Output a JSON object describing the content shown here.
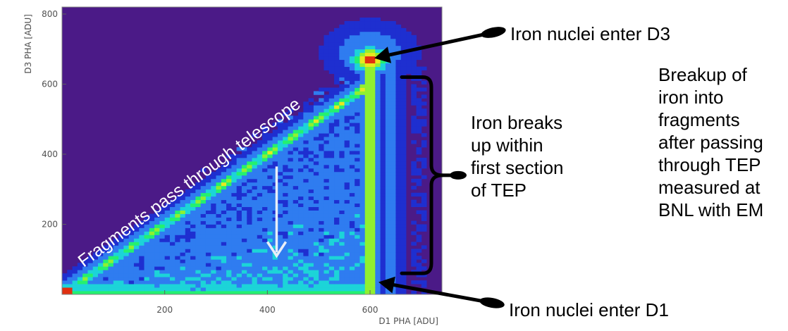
{
  "chart_data": {
    "type": "heatmap",
    "xlabel": "D1  PHA  [ADU]",
    "ylabel": "D3  PHA  [ADU]",
    "xlim": [
      0,
      740
    ],
    "ylim": [
      0,
      820
    ],
    "xticks": [
      200,
      400,
      600
    ],
    "yticks": [
      200,
      400,
      600,
      800
    ],
    "background_color": "#4b1a87",
    "colorscale": [
      "#4b1a87",
      "#1e2fd0",
      "#2f7cf0",
      "#1cd4d8",
      "#24f070",
      "#90f030",
      "#e8e820",
      "#e03010"
    ],
    "features": [
      {
        "name": "diagonal band",
        "x_range": [
          0,
          600
        ],
        "y_equals_x": true,
        "peak_counts": "high"
      },
      {
        "name": "vertical band",
        "x": 600,
        "y_range": [
          0,
          700
        ],
        "peak_counts": "high"
      },
      {
        "name": "iron peak",
        "x": 600,
        "y": 670
      },
      {
        "name": "triangle fill",
        "region": "below diagonal, left of x=600",
        "counts": "low-medium"
      }
    ],
    "annotations": [
      {
        "text": "Fragments pass through telescope"
      },
      {
        "text": "Iron nuclei enter D3",
        "points_to": [
          600,
          670
        ]
      },
      {
        "text": "Iron nuclei enter D1",
        "points_to": [
          600,
          40
        ]
      },
      {
        "text": [
          "Iron breaks",
          "up within",
          "first section",
          "of TEP"
        ],
        "points_to_range": [
          [
            650,
            60
          ],
          [
            650,
            620
          ]
        ]
      },
      {
        "text": [
          "Breakup of",
          "iron into",
          "fragments",
          "after passing",
          "through TEP",
          "measured at",
          "BNL with EM"
        ]
      }
    ]
  }
}
